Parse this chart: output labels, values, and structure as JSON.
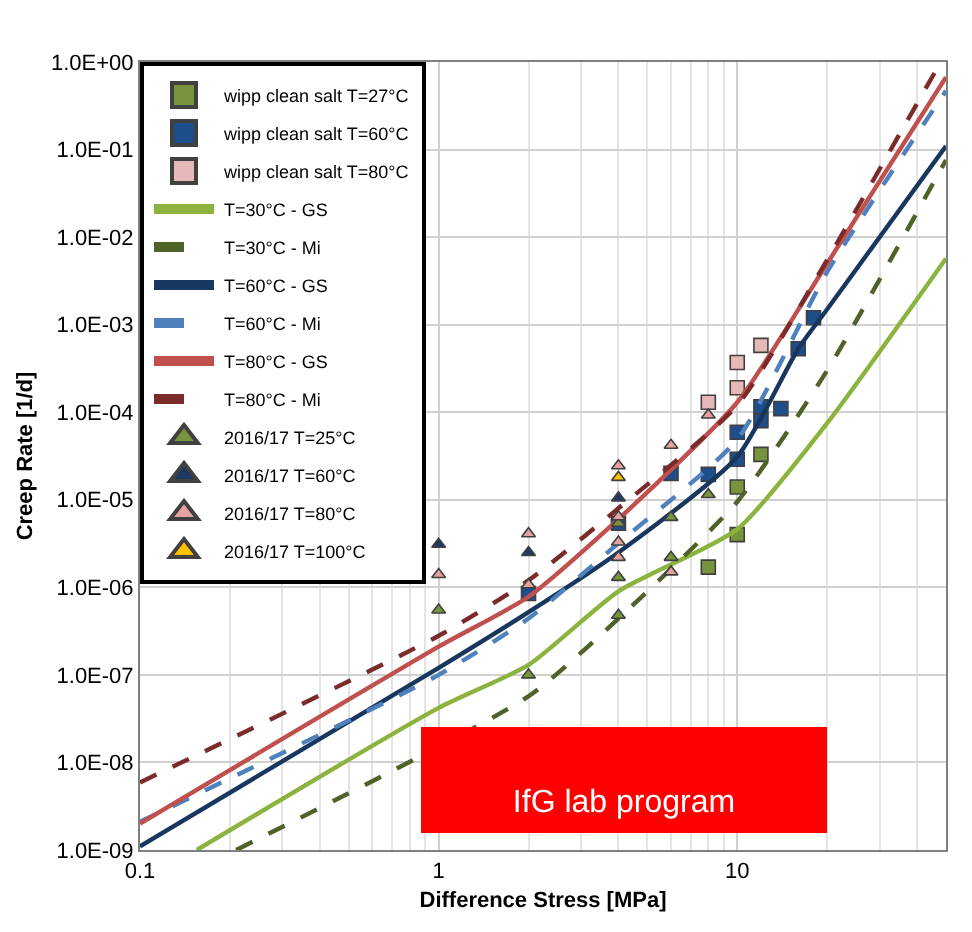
{
  "chart_data": {
    "type": "scatter",
    "xlabel": "Difference Stress [MPa]",
    "ylabel": "Creep Rate [1/d]",
    "log": "xy",
    "grid": true,
    "legend": "top left",
    "xlim": [
      0.1,
      50
    ],
    "xticks": [
      0.1,
      1,
      10
    ],
    "ylim": [
      1e-09,
      1
    ],
    "yticks": [
      {
        "value": 1e-09,
        "label": "1.0E-09"
      },
      {
        "value": 1e-08,
        "label": "1.0E-08"
      },
      {
        "value": 1e-07,
        "label": "1.0E-07"
      },
      {
        "value": 1e-06,
        "label": "1.0E-06"
      },
      {
        "value": 1e-05,
        "label": "1.0E-05"
      },
      {
        "value": 0.0001,
        "label": "1.0E-04"
      },
      {
        "value": 0.001,
        "label": "1.0E-03"
      },
      {
        "value": 0.01,
        "label": "1.0E-02"
      },
      {
        "value": 0.1,
        "label": "1.0E-01"
      },
      {
        "value": 1,
        "label": "1.0E+00"
      }
    ],
    "annotations": [
      "IfG lab program"
    ],
    "series": [
      {
        "name": "wipp clean salt T=27°C",
        "marker": "square",
        "color": "#77933c",
        "x": [
          8,
          10,
          10,
          12
        ],
        "values": [
          1.7e-06,
          4e-06,
          1.4e-05,
          3.3e-05
        ]
      },
      {
        "name": "wipp clean salt T=60°C",
        "marker": "square",
        "color": "#1f4e8c",
        "x": [
          2,
          4,
          6,
          8,
          10,
          10,
          12,
          12,
          14,
          16,
          18
        ],
        "values": [
          8.5e-07,
          5.4e-06,
          2e-05,
          1.95e-05,
          2.9e-05,
          5.9e-05,
          8e-05,
          0.000115,
          0.00011,
          0.00053,
          0.0012
        ]
      },
      {
        "name": "wipp clean salt T=80°C",
        "marker": "square",
        "color": "#e6b9b8",
        "x": [
          8,
          10,
          10,
          12
        ],
        "values": [
          0.00013,
          0.00019,
          0.00037,
          0.00058
        ]
      },
      {
        "name": "T=30°C - GS",
        "type": "line",
        "marker": "none",
        "line_style": "solid",
        "color": "#8db33f",
        "x": [
          0.155,
          1,
          2,
          4,
          10,
          20,
          50
        ],
        "values": [
          1e-09,
          4.2e-08,
          1.3e-07,
          9e-07,
          4.6e-06,
          7.5e-05,
          0.0057
        ]
      },
      {
        "name": "T=30°C - Mi",
        "type": "line",
        "marker": "none",
        "line_style": "dashed",
        "color": "#4f6228",
        "x": [
          0.21,
          2,
          4,
          10,
          20,
          50
        ],
        "values": [
          1e-09,
          5.7e-08,
          4.4e-07,
          9.5e-06,
          0.0003,
          0.076
        ]
      },
      {
        "name": "T=60°C - GS",
        "type": "line",
        "marker": "none",
        "line_style": "solid",
        "color": "#17375e",
        "x": [
          0.1,
          1,
          2,
          4,
          10,
          16,
          20,
          50
        ],
        "values": [
          1.1e-09,
          1.2e-07,
          5.2e-07,
          2.5e-06,
          3.1e-05,
          0.00053,
          0.0015,
          0.11
        ]
      },
      {
        "name": "T=60°C - Mi",
        "type": "line",
        "marker": "none",
        "line_style": "dashed",
        "color": "#4f81bd",
        "x": [
          0.1,
          1,
          2,
          4,
          10,
          20,
          50
        ],
        "values": [
          2.1e-09,
          1e-07,
          4.4e-07,
          3.2e-06,
          4.9e-05,
          0.004,
          0.47
        ]
      },
      {
        "name": "T=80°C - GS",
        "type": "line",
        "marker": "none",
        "line_style": "solid",
        "color": "#c0504d",
        "x": [
          0.1,
          1,
          2,
          4,
          10,
          20,
          50
        ],
        "values": [
          2e-09,
          2.1e-07,
          7.8e-07,
          6e-06,
          0.00013,
          0.005,
          0.67
        ]
      },
      {
        "name": "T=80°C - Mi",
        "type": "line",
        "marker": "none",
        "line_style": "dashed",
        "color": "#7b2c2a",
        "x": [
          0.1,
          1,
          2,
          4,
          10,
          20,
          48
        ],
        "values": [
          5.9e-09,
          2.8e-07,
          1.2e-06,
          8e-06,
          0.00012,
          0.0055,
          1
        ]
      },
      {
        "name": "2016/17 T=25°C",
        "marker": "triangle",
        "color": "#77933c",
        "x": [
          1,
          2,
          4,
          4,
          4,
          6,
          6,
          8
        ],
        "values": [
          5.5e-07,
          1e-07,
          4.8e-07,
          1.3e-06,
          5.4e-06,
          2.2e-06,
          6.3e-06,
          1.15e-05
        ]
      },
      {
        "name": "2016/17 T=60°C",
        "marker": "triangle",
        "color": "#1f3864",
        "x": [
          1,
          2,
          4
        ],
        "values": [
          3.1e-06,
          2.5e-06,
          1.05e-05
        ]
      },
      {
        "name": "2016/17 T=80°C",
        "marker": "triangle",
        "color": "#e6a0a0",
        "x": [
          1,
          2,
          2,
          4,
          4,
          4,
          4,
          6,
          6,
          8
        ],
        "values": [
          1.4e-06,
          4.1e-06,
          1.07e-06,
          2.45e-05,
          6.4e-06,
          3.3e-06,
          2.2e-06,
          4.2e-05,
          1.5e-06,
          9.3e-05
        ]
      },
      {
        "name": "2016/17 T=100°C",
        "marker": "triangle",
        "color": "#ffc000",
        "x": [
          4
        ],
        "values": [
          1.8e-05
        ]
      }
    ]
  }
}
